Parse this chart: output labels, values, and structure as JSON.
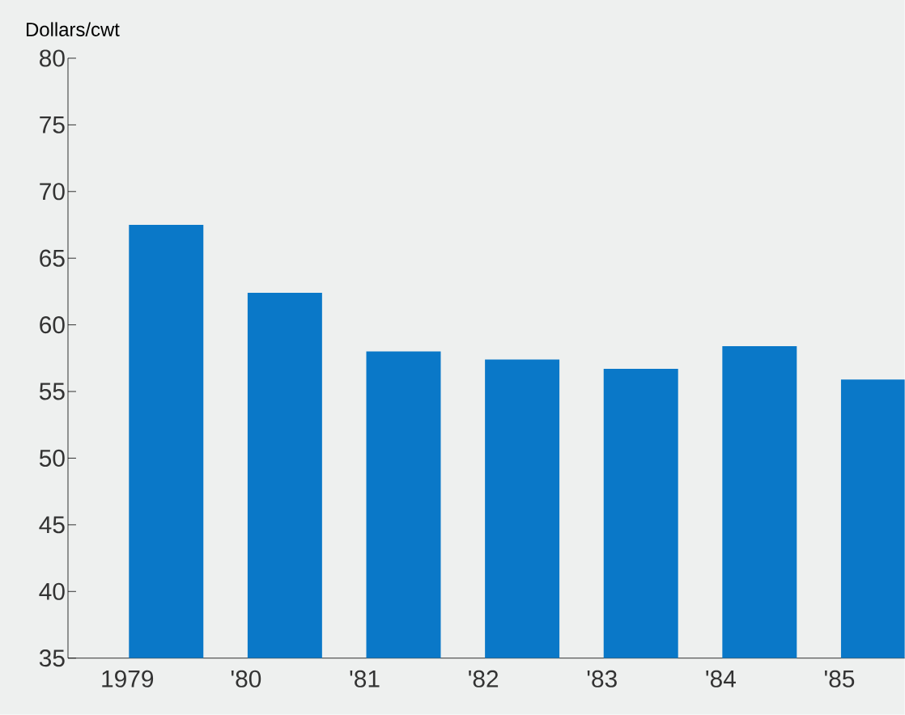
{
  "chart_data": {
    "type": "bar",
    "ylabel": "Dollars/cwt",
    "categories": [
      "1979",
      "'80",
      "'81",
      "'82",
      "'83",
      "'84",
      "'85"
    ],
    "values": [
      67.5,
      62.4,
      58.0,
      57.4,
      56.7,
      58.4,
      55.9
    ],
    "color": "#0a78c8",
    "ylim": [
      35,
      80
    ],
    "yticks": [
      35,
      40,
      45,
      50,
      55,
      60,
      65,
      70,
      75,
      80
    ],
    "grid": false,
    "legend": false
  }
}
